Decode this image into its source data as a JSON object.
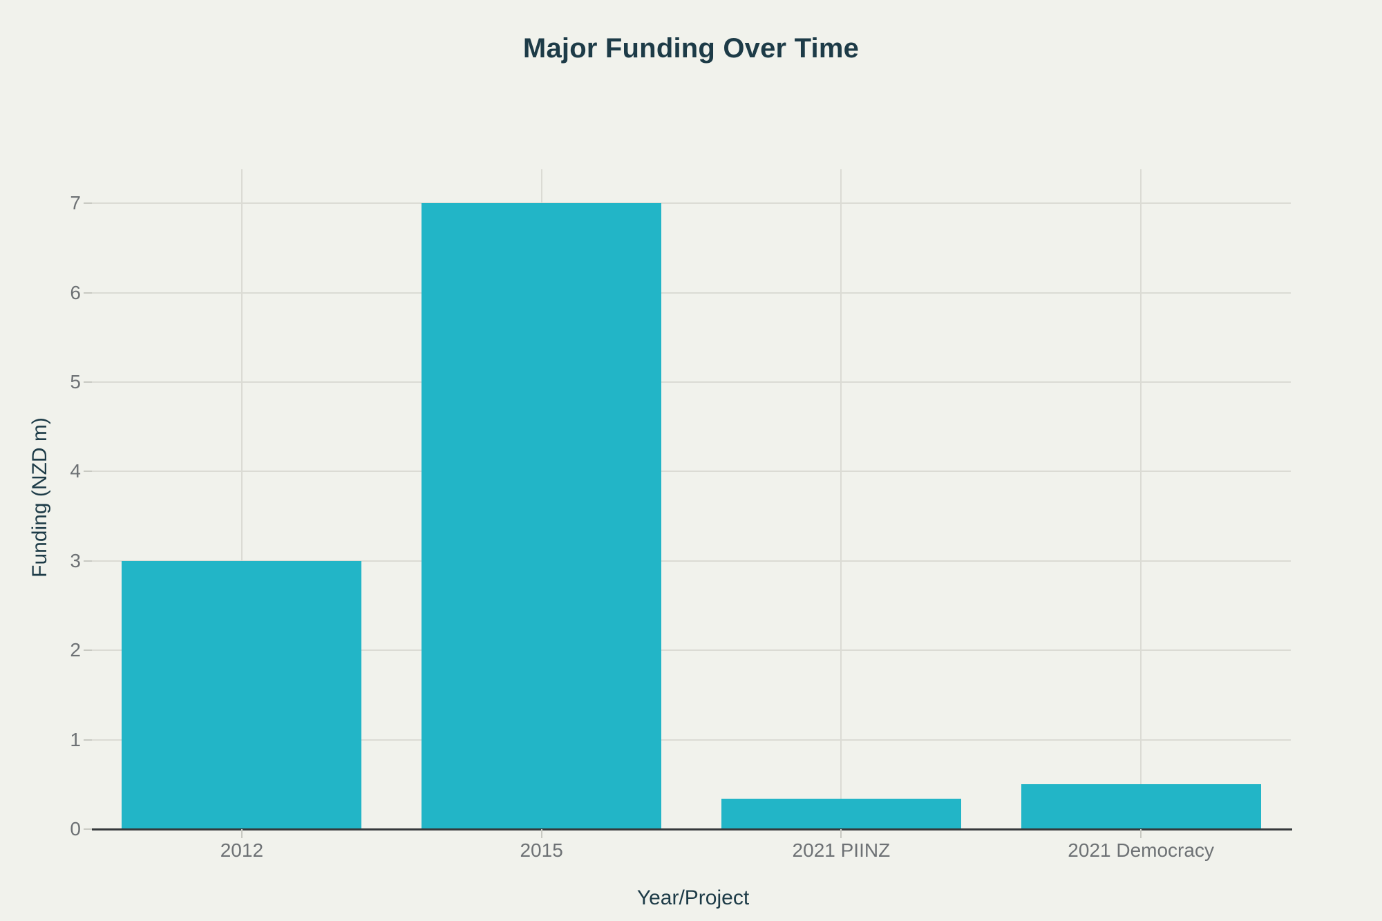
{
  "chart_data": {
    "type": "bar",
    "title": "Major Funding Over Time",
    "xlabel": "Year/Project",
    "ylabel": "Funding (NZD m)",
    "categories": [
      "2012",
      "2015",
      "2021 PIINZ",
      "2021 Democracy"
    ],
    "values": [
      3,
      7,
      0.34,
      0.5
    ],
    "yticks": [
      0,
      1,
      2,
      3,
      4,
      5,
      6,
      7
    ],
    "ylim": [
      0,
      7.38
    ],
    "grid": true,
    "legend_position": "none",
    "colors": {
      "bar": "#22b5c7",
      "background": "#f1f2ec",
      "title_text": "#1d3b47",
      "tick_label": "#6d7174",
      "gridline": "#dbdbd4",
      "axis_line": "#35393b",
      "tick_mark": "#c8c9c2"
    }
  }
}
